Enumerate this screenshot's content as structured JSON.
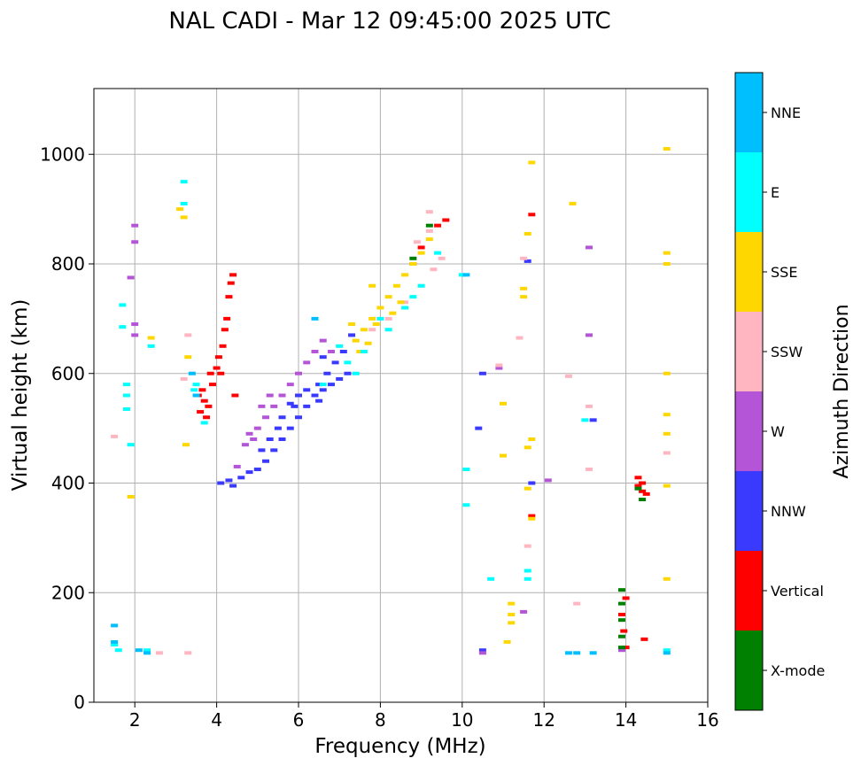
{
  "chart_data": {
    "type": "scatter",
    "title": "NAL CADI - Mar 12 09:45:00 2025 UTC",
    "xlabel": "Frequency (MHz)",
    "ylabel": "Virtual height (km)",
    "xlim": [
      1,
      16
    ],
    "ylim": [
      0,
      1120
    ],
    "xticks": [
      2,
      4,
      6,
      8,
      10,
      12,
      14,
      16
    ],
    "yticks": [
      0,
      200,
      400,
      600,
      800,
      1000
    ],
    "grid": true,
    "colorbar": {
      "label": "Azimuth Direction",
      "categories": [
        {
          "name": "X-mode",
          "color": "#008000"
        },
        {
          "name": "Vertical",
          "color": "#ff0000"
        },
        {
          "name": "NNW",
          "color": "#3a3aff"
        },
        {
          "name": "W",
          "color": "#b455d8"
        },
        {
          "name": "SSW",
          "color": "#ffb6c1"
        },
        {
          "name": "SSE",
          "color": "#ffd700"
        },
        {
          "name": "E",
          "color": "#00ffff"
        },
        {
          "name": "NNE",
          "color": "#00bfff"
        }
      ]
    },
    "series": [
      {
        "name": "Vertical",
        "points": [
          [
            3.6,
            530
          ],
          [
            3.7,
            550
          ],
          [
            3.8,
            540
          ],
          [
            3.65,
            570
          ],
          [
            3.75,
            520
          ],
          [
            3.9,
            580
          ],
          [
            4.0,
            610
          ],
          [
            4.05,
            630
          ],
          [
            4.1,
            600
          ],
          [
            4.15,
            650
          ],
          [
            4.2,
            680
          ],
          [
            4.25,
            700
          ],
          [
            4.3,
            740
          ],
          [
            4.35,
            765
          ],
          [
            4.4,
            780
          ],
          [
            3.55,
            560
          ],
          [
            3.85,
            600
          ],
          [
            4.45,
            560
          ],
          [
            14.3,
            410
          ],
          [
            14.4,
            400
          ],
          [
            14.4,
            385
          ],
          [
            14.3,
            395
          ],
          [
            14.5,
            380
          ],
          [
            14.0,
            100
          ],
          [
            13.95,
            130
          ],
          [
            13.9,
            160
          ],
          [
            14.0,
            190
          ],
          [
            14.45,
            115
          ],
          [
            9.4,
            870
          ],
          [
            9.6,
            880
          ],
          [
            11.7,
            890
          ],
          [
            11.7,
            340
          ],
          [
            9.0,
            830
          ],
          [
            8.8,
            800
          ]
        ]
      },
      {
        "name": "NNW",
        "points": [
          [
            4.1,
            400
          ],
          [
            4.3,
            405
          ],
          [
            4.6,
            410
          ],
          [
            4.8,
            420
          ],
          [
            5.0,
            425
          ],
          [
            5.2,
            440
          ],
          [
            5.4,
            460
          ],
          [
            5.6,
            480
          ],
          [
            5.8,
            500
          ],
          [
            6.0,
            520
          ],
          [
            6.2,
            540
          ],
          [
            6.4,
            560
          ],
          [
            6.6,
            570
          ],
          [
            6.8,
            580
          ],
          [
            7.0,
            590
          ],
          [
            7.2,
            600
          ],
          [
            5.6,
            520
          ],
          [
            5.8,
            545
          ],
          [
            6.0,
            560
          ],
          [
            6.2,
            570
          ],
          [
            6.5,
            580
          ],
          [
            6.7,
            600
          ],
          [
            5.1,
            460
          ],
          [
            5.3,
            480
          ],
          [
            5.5,
            500
          ],
          [
            6.9,
            620
          ],
          [
            7.1,
            640
          ],
          [
            7.3,
            670
          ],
          [
            6.5,
            550
          ],
          [
            4.4,
            395
          ],
          [
            6.6,
            630
          ],
          [
            5.9,
            540
          ],
          [
            11.6,
            805
          ],
          [
            10.5,
            600
          ],
          [
            10.4,
            500
          ],
          [
            10.5,
            95
          ],
          [
            13.2,
            515
          ],
          [
            11.7,
            400
          ]
        ]
      },
      {
        "name": "W",
        "points": [
          [
            1.9,
            775
          ],
          [
            2.0,
            870
          ],
          [
            2.0,
            840
          ],
          [
            2.0,
            690
          ],
          [
            2.0,
            670
          ],
          [
            4.8,
            490
          ],
          [
            5.0,
            500
          ],
          [
            5.2,
            520
          ],
          [
            5.4,
            540
          ],
          [
            5.6,
            560
          ],
          [
            5.8,
            580
          ],
          [
            6.0,
            600
          ],
          [
            6.2,
            620
          ],
          [
            6.4,
            640
          ],
          [
            5.1,
            540
          ],
          [
            5.3,
            560
          ],
          [
            6.6,
            660
          ],
          [
            6.8,
            640
          ],
          [
            4.5,
            430
          ],
          [
            4.7,
            470
          ],
          [
            4.9,
            480
          ],
          [
            13.9,
            95
          ],
          [
            10.5,
            90
          ],
          [
            11.5,
            165
          ],
          [
            12.1,
            405
          ],
          [
            13.1,
            670
          ],
          [
            13.1,
            830
          ],
          [
            10.9,
            610
          ]
        ]
      },
      {
        "name": "SSW",
        "points": [
          [
            1.5,
            485
          ],
          [
            3.2,
            590
          ],
          [
            3.3,
            670
          ],
          [
            7.8,
            680
          ],
          [
            8.2,
            700
          ],
          [
            8.6,
            730
          ],
          [
            9.0,
            760
          ],
          [
            9.3,
            790
          ],
          [
            9.5,
            810
          ],
          [
            8.9,
            840
          ],
          [
            9.2,
            860
          ],
          [
            12.8,
            180
          ],
          [
            13.1,
            425
          ],
          [
            11.6,
            285
          ],
          [
            11.4,
            665
          ],
          [
            11.5,
            810
          ],
          [
            12.6,
            595
          ],
          [
            15.0,
            455
          ],
          [
            10.9,
            615
          ],
          [
            2.6,
            90
          ],
          [
            3.3,
            90
          ],
          [
            13.1,
            540
          ],
          [
            9.2,
            895
          ]
        ]
      },
      {
        "name": "SSE",
        "points": [
          [
            1.9,
            375
          ],
          [
            3.1,
            900
          ],
          [
            3.2,
            885
          ],
          [
            7.4,
            660
          ],
          [
            7.6,
            680
          ],
          [
            7.8,
            700
          ],
          [
            8.0,
            720
          ],
          [
            8.2,
            740
          ],
          [
            8.4,
            760
          ],
          [
            8.6,
            780
          ],
          [
            8.8,
            800
          ],
          [
            9.0,
            820
          ],
          [
            7.5,
            640
          ],
          [
            7.7,
            655
          ],
          [
            7.9,
            690
          ],
          [
            8.3,
            710
          ],
          [
            8.5,
            730
          ],
          [
            9.2,
            845
          ],
          [
            7.3,
            690
          ],
          [
            7.8,
            760
          ],
          [
            11.2,
            180
          ],
          [
            11.2,
            160
          ],
          [
            11.2,
            145
          ],
          [
            11.1,
            110
          ],
          [
            11.7,
            985
          ],
          [
            11.6,
            855
          ],
          [
            12.7,
            910
          ],
          [
            15.0,
            1010
          ],
          [
            15.0,
            820
          ],
          [
            15.0,
            800
          ],
          [
            15.0,
            600
          ],
          [
            15.0,
            525
          ],
          [
            15.0,
            490
          ],
          [
            15.0,
            395
          ],
          [
            15.0,
            225
          ],
          [
            11.0,
            450
          ],
          [
            11.0,
            545
          ],
          [
            11.5,
            755
          ],
          [
            11.5,
            740
          ],
          [
            11.6,
            465
          ],
          [
            11.7,
            480
          ],
          [
            11.6,
            390
          ],
          [
            11.7,
            335
          ],
          [
            2.4,
            665
          ],
          [
            3.25,
            470
          ],
          [
            3.3,
            630
          ]
        ]
      },
      {
        "name": "E",
        "points": [
          [
            1.5,
            105
          ],
          [
            1.6,
            95
          ],
          [
            2.3,
            95
          ],
          [
            3.2,
            950
          ],
          [
            3.2,
            910
          ],
          [
            3.5,
            580
          ],
          [
            3.45,
            570
          ],
          [
            7.2,
            620
          ],
          [
            7.6,
            640
          ],
          [
            8.2,
            680
          ],
          [
            8.6,
            720
          ],
          [
            9.0,
            760
          ],
          [
            9.4,
            820
          ],
          [
            7.0,
            650
          ],
          [
            6.6,
            580
          ],
          [
            7.4,
            600
          ],
          [
            8.0,
            700
          ],
          [
            8.8,
            740
          ],
          [
            2.4,
            650
          ],
          [
            10.1,
            425
          ],
          [
            10.1,
            360
          ],
          [
            10.7,
            225
          ],
          [
            11.6,
            225
          ],
          [
            11.6,
            240
          ],
          [
            13.0,
            515
          ],
          [
            15.0,
            95
          ],
          [
            1.7,
            725
          ],
          [
            1.7,
            685
          ],
          [
            1.8,
            560
          ],
          [
            1.8,
            580
          ],
          [
            1.9,
            470
          ],
          [
            1.8,
            535
          ],
          [
            3.7,
            510
          ],
          [
            10.0,
            780
          ]
        ]
      },
      {
        "name": "NNE",
        "points": [
          [
            1.5,
            140
          ],
          [
            1.5,
            110
          ],
          [
            2.3,
            90
          ],
          [
            2.1,
            95
          ],
          [
            12.6,
            90
          ],
          [
            12.8,
            90
          ],
          [
            13.2,
            90
          ],
          [
            15.0,
            90
          ],
          [
            3.5,
            560
          ],
          [
            3.4,
            600
          ],
          [
            6.4,
            700
          ],
          [
            10.1,
            780
          ]
        ]
      },
      {
        "name": "X-mode",
        "points": [
          [
            13.9,
            205
          ],
          [
            13.9,
            180
          ],
          [
            13.9,
            150
          ],
          [
            13.9,
            120
          ],
          [
            13.9,
            100
          ],
          [
            14.3,
            390
          ],
          [
            14.4,
            370
          ],
          [
            9.2,
            870
          ],
          [
            8.8,
            810
          ]
        ]
      }
    ]
  }
}
